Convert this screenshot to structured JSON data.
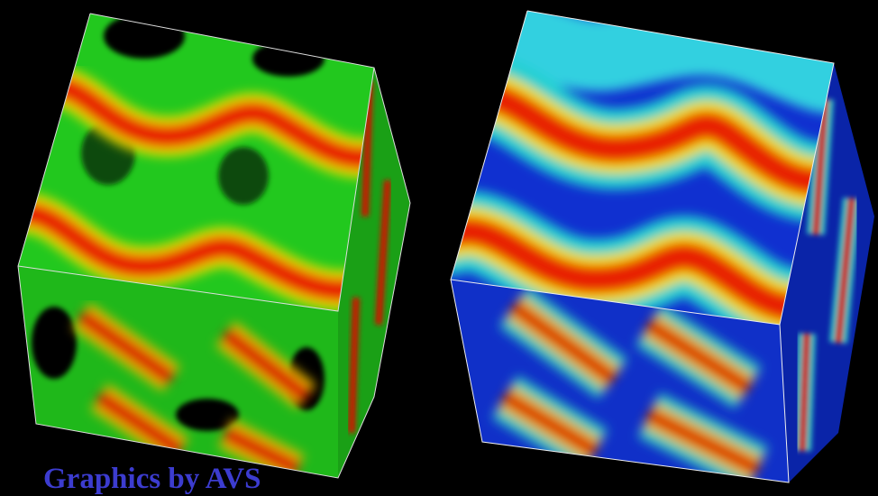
{
  "caption": "Graphics by AVS"
}
